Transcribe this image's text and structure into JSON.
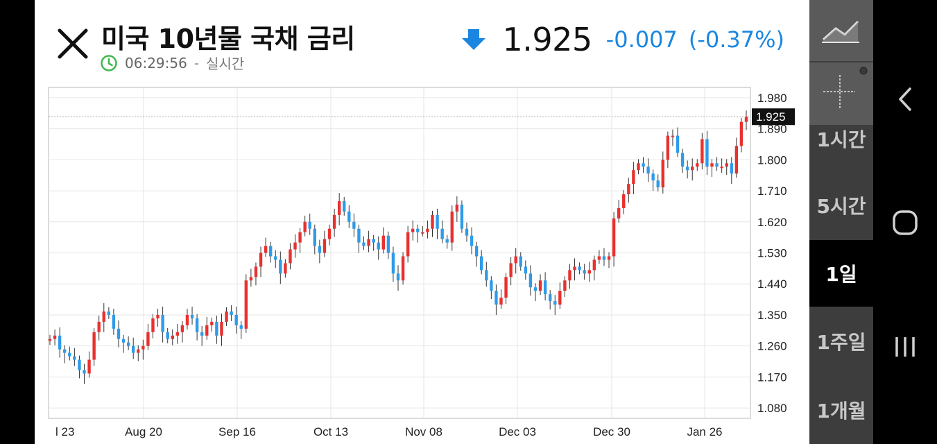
{
  "header": {
    "title": "미국 10년물 국채 금리",
    "time": "06:29:56",
    "time_separator": "-",
    "time_label": "실시간",
    "price": "1.925",
    "change_abs": "-0.007",
    "change_pct": "(-0.37%)"
  },
  "toolbar": {
    "chart_type_icon": "line-chart-icon",
    "crosshair_icon": "crosshair-icon",
    "intervals": [
      "1시간",
      "5시간",
      "1일",
      "1주일",
      "1개월"
    ],
    "active_interval": "1일"
  },
  "nav": {
    "back_icon": "back-icon",
    "home_icon": "home-icon",
    "recents_icon": "recents-icon"
  },
  "colors": {
    "up": "#e8312f",
    "down": "#2f9be8",
    "accent": "#1a86e0",
    "clock": "#3fba4d",
    "arrow": "#1a86e0"
  },
  "chart_data": {
    "type": "candlestick",
    "y_ticks": [
      "1.980",
      "1.890",
      "1.800",
      "1.710",
      "1.620",
      "1.530",
      "1.440",
      "1.350",
      "1.260",
      "1.170",
      "1.080"
    ],
    "x_ticks": [
      "l 23",
      "Aug 20",
      "Sep 16",
      "Oct 13",
      "Nov 08",
      "Dec 03",
      "Dec 30",
      "Jan 26"
    ],
    "ylim": [
      1.05,
      2.01
    ],
    "current_value": "1.925",
    "closes": [
      1.28,
      1.29,
      1.25,
      1.24,
      1.23,
      1.22,
      1.19,
      1.18,
      1.22,
      1.3,
      1.33,
      1.36,
      1.35,
      1.31,
      1.28,
      1.27,
      1.26,
      1.24,
      1.25,
      1.26,
      1.3,
      1.34,
      1.35,
      1.3,
      1.28,
      1.29,
      1.3,
      1.32,
      1.35,
      1.34,
      1.3,
      1.29,
      1.32,
      1.33,
      1.29,
      1.33,
      1.36,
      1.35,
      1.32,
      1.31,
      1.45,
      1.46,
      1.49,
      1.53,
      1.55,
      1.52,
      1.51,
      1.47,
      1.5,
      1.54,
      1.56,
      1.59,
      1.62,
      1.6,
      1.55,
      1.53,
      1.57,
      1.6,
      1.64,
      1.68,
      1.65,
      1.62,
      1.6,
      1.56,
      1.55,
      1.57,
      1.56,
      1.54,
      1.58,
      1.53,
      1.47,
      1.45,
      1.52,
      1.59,
      1.6,
      1.59,
      1.59,
      1.6,
      1.64,
      1.6,
      1.57,
      1.56,
      1.65,
      1.67,
      1.6,
      1.58,
      1.55,
      1.52,
      1.48,
      1.45,
      1.42,
      1.38,
      1.4,
      1.46,
      1.5,
      1.52,
      1.49,
      1.47,
      1.43,
      1.42,
      1.45,
      1.41,
      1.39,
      1.38,
      1.42,
      1.45,
      1.48,
      1.49,
      1.48,
      1.47,
      1.48,
      1.51,
      1.52,
      1.51,
      1.52,
      1.63,
      1.66,
      1.7,
      1.73,
      1.77,
      1.79,
      1.78,
      1.76,
      1.74,
      1.72,
      1.8,
      1.87,
      1.87,
      1.82,
      1.78,
      1.77,
      1.78,
      1.79,
      1.86,
      1.78,
      1.79,
      1.78,
      1.78,
      1.79,
      1.76,
      1.84,
      1.91,
      1.925
    ]
  }
}
